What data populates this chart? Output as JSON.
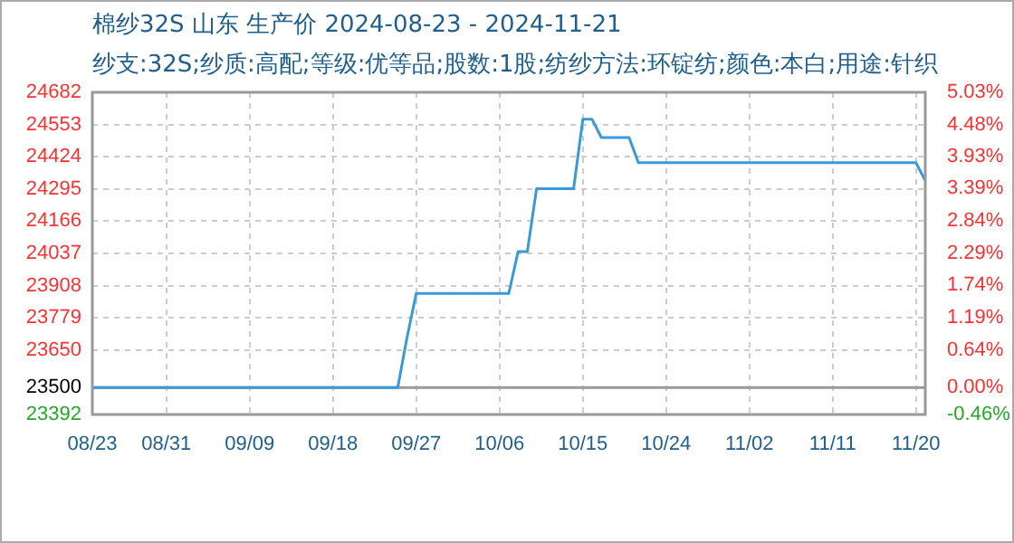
{
  "chart_data": {
    "type": "line",
    "title": "棉纱32S 山东 生产价 2024-08-23 - 2024-11-21",
    "subtitle": "纱支:32S;纱质:高配;等级:优等品;股数:1股;纺纱方法:环锭纺;颜色:本白;用途:针织",
    "x": [
      "2024-08-23",
      "2024-09-25",
      "2024-09-26",
      "2024-09-27",
      "2024-10-07",
      "2024-10-08",
      "2024-10-09",
      "2024-10-10",
      "2024-10-14",
      "2024-10-15",
      "2024-10-16",
      "2024-10-17",
      "2024-10-20",
      "2024-10-21",
      "2024-11-20",
      "2024-11-21"
    ],
    "series": [
      {
        "color": "#3a9ad9",
        "values": [
          23500,
          23500,
          23700,
          23877,
          23877,
          24044,
          24044,
          24296,
          24296,
          24574,
          24574,
          24501,
          24501,
          24400,
          24400,
          24328
        ]
      }
    ],
    "xlim": [
      "2024-08-23",
      "2024-11-21"
    ],
    "xticks": [
      {
        "value": "2024-08-23",
        "label": "08/23"
      },
      {
        "value": "2024-08-31",
        "label": "08/31"
      },
      {
        "value": "2024-09-09",
        "label": "09/09"
      },
      {
        "value": "2024-09-18",
        "label": "09/18"
      },
      {
        "value": "2024-09-27",
        "label": "09/27"
      },
      {
        "value": "2024-10-06",
        "label": "10/06"
      },
      {
        "value": "2024-10-15",
        "label": "10/15"
      },
      {
        "value": "2024-10-24",
        "label": "10/24"
      },
      {
        "value": "2024-11-02",
        "label": "11/02"
      },
      {
        "value": "2024-11-11",
        "label": "11/11"
      },
      {
        "value": "2024-11-20",
        "label": "11/20"
      }
    ],
    "ylim": [
      23392,
      24682
    ],
    "yticks": [
      23392,
      23500,
      23650,
      23779,
      23908,
      24037,
      24166,
      24295,
      24424,
      24553,
      24682
    ],
    "y2lim": [
      -0.46,
      5.03
    ],
    "y2ticks": [
      {
        "value": -0.46,
        "label": "-0.46%"
      },
      {
        "value": 0,
        "label": "0.00%"
      },
      {
        "value": 0.64,
        "label": "0.64%"
      },
      {
        "value": 1.19,
        "label": "1.19%"
      },
      {
        "value": 1.74,
        "label": "1.74%"
      },
      {
        "value": 2.29,
        "label": "2.29%"
      },
      {
        "value": 2.84,
        "label": "2.84%"
      },
      {
        "value": 3.39,
        "label": "3.39%"
      },
      {
        "value": 3.93,
        "label": "3.93%"
      },
      {
        "value": 4.48,
        "label": "4.48%"
      },
      {
        "value": 5.03,
        "label": "5.03%"
      }
    ],
    "ref_lines": [
      {
        "axis": "y",
        "value": 23500,
        "color": "#999999"
      }
    ],
    "grid": true,
    "legend": false
  }
}
